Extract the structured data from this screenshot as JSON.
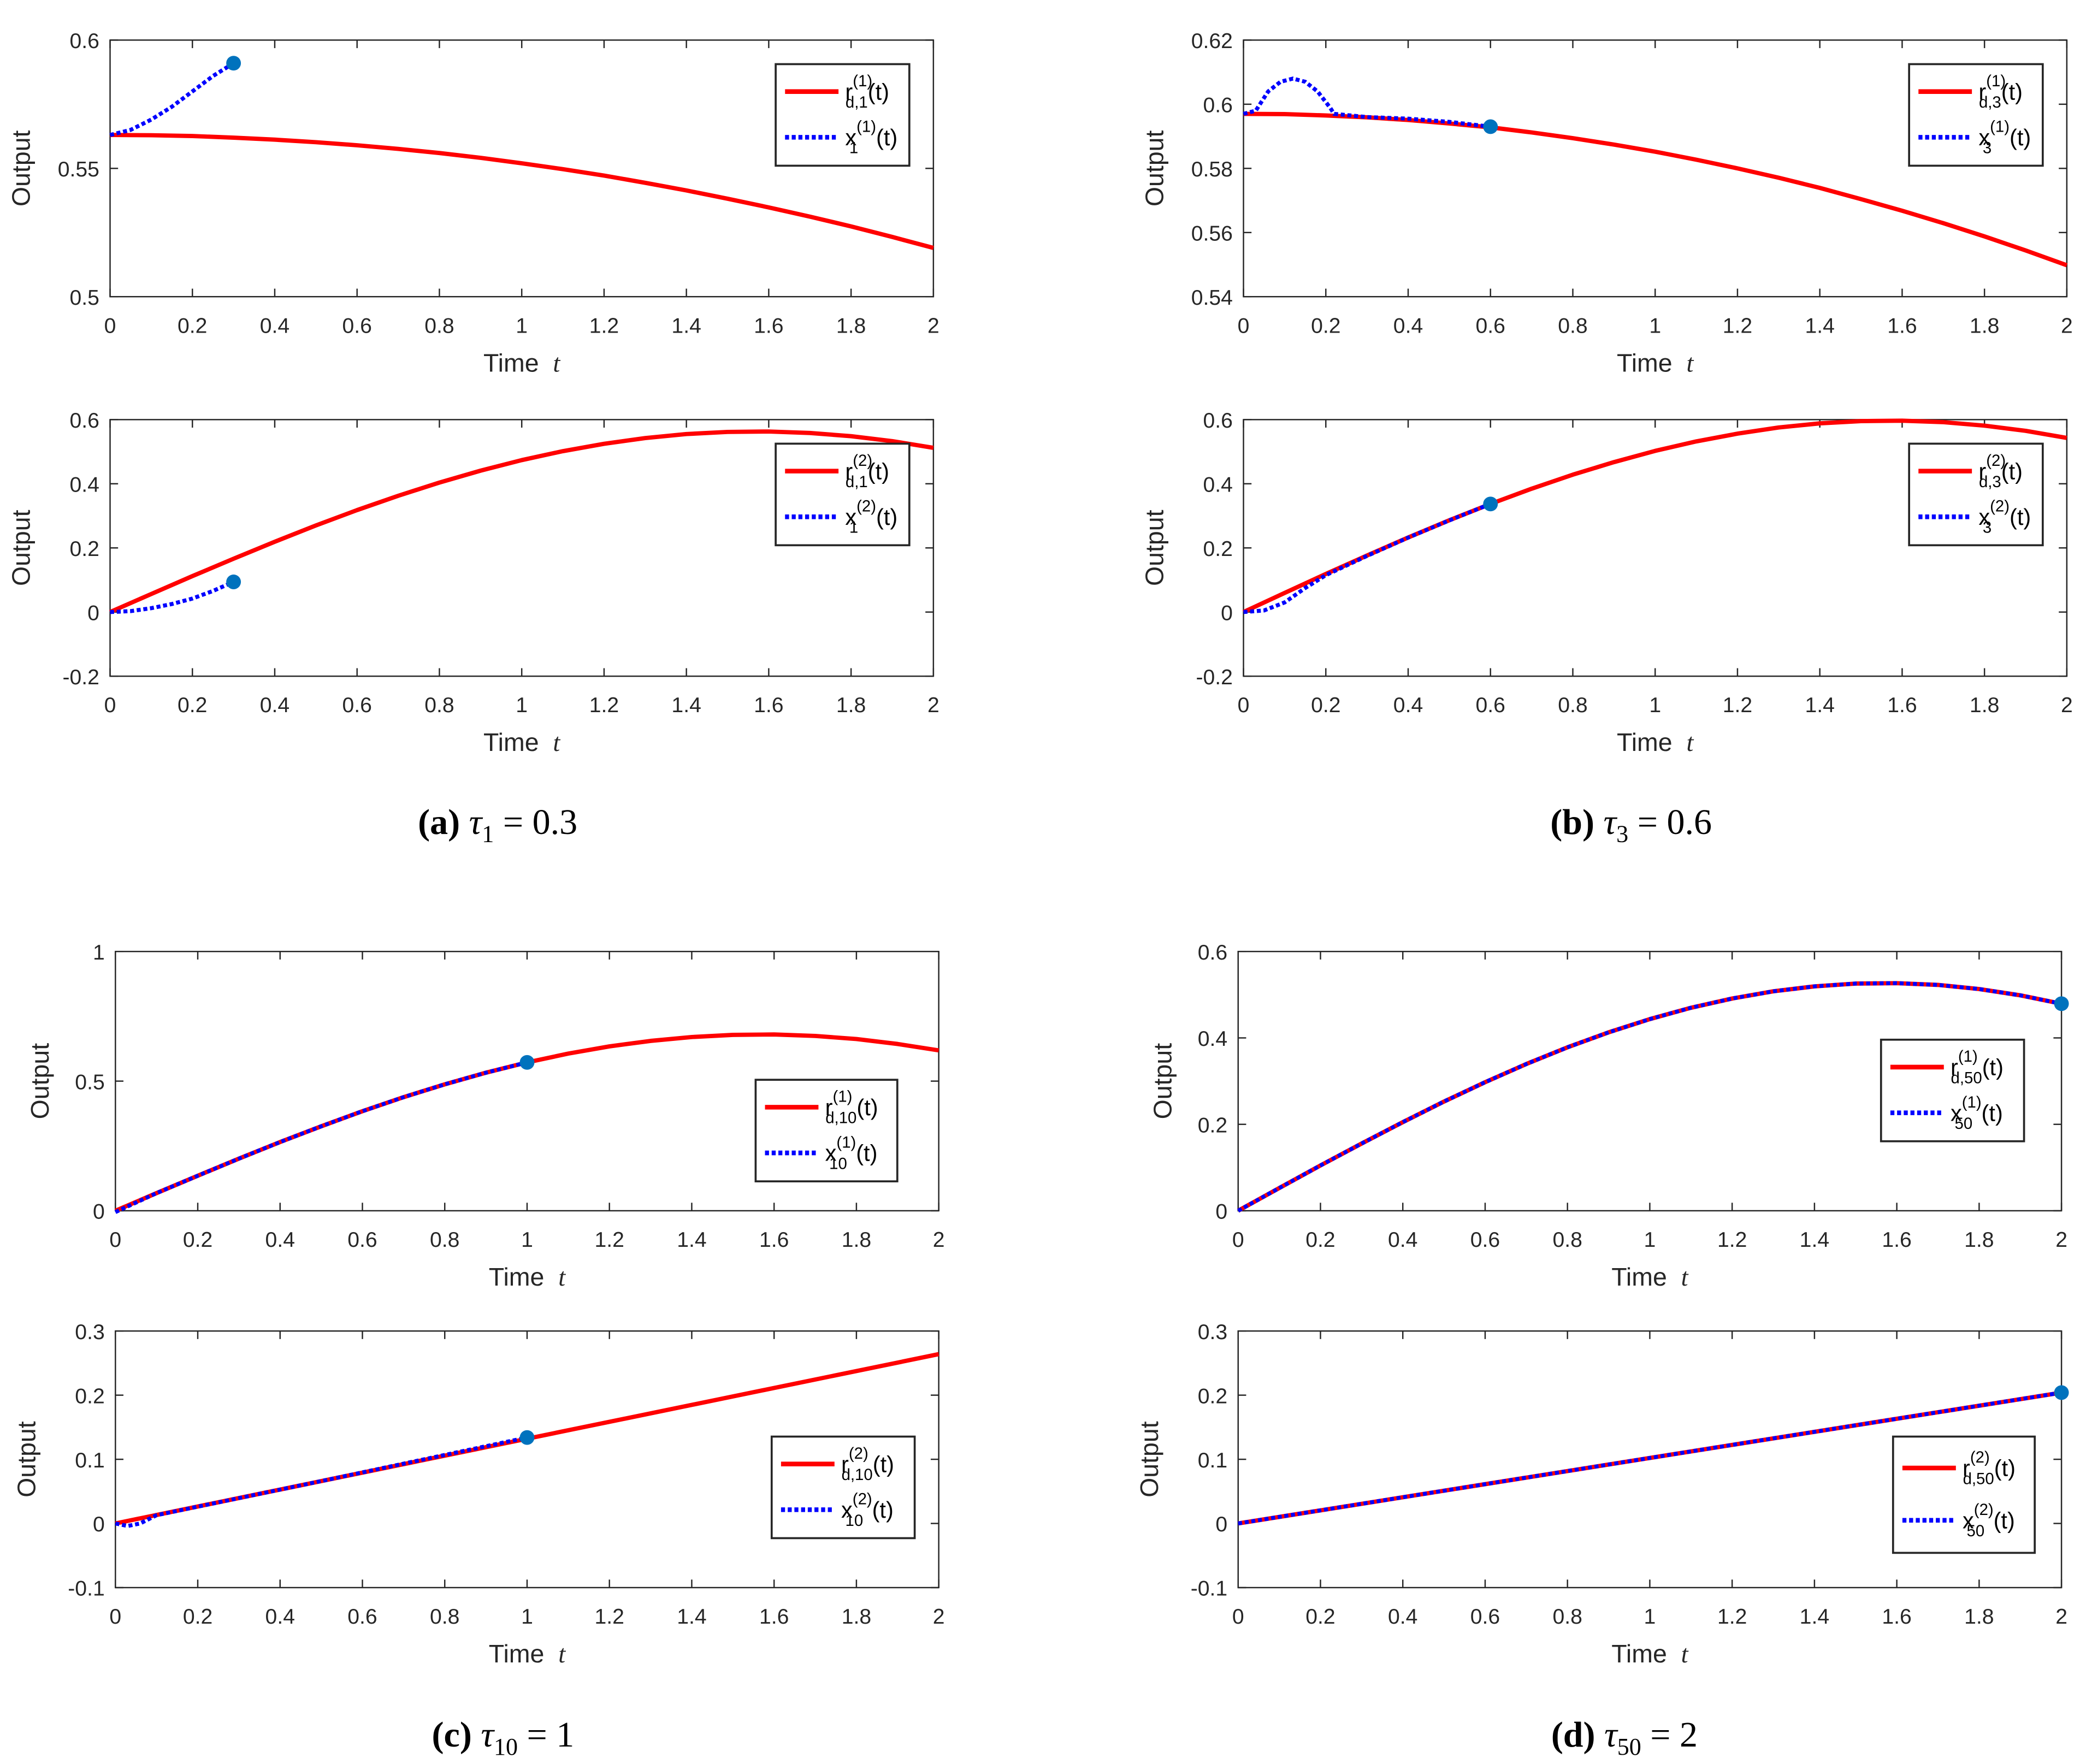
{
  "colors": {
    "reference": "#ff0000",
    "state": "#0000ff",
    "marker": "#0072bd",
    "axis": "#262626"
  },
  "chart_data": [
    {
      "type": "line",
      "panel": "a",
      "position": "top",
      "xlabel": "Time",
      "xlabel_var": "t",
      "ylabel": "Output",
      "xlim": [
        0,
        2
      ],
      "ylim": [
        0.5,
        0.6
      ],
      "xticks": [
        0,
        0.2,
        0.4,
        0.6,
        0.8,
        1,
        1.2,
        1.4,
        1.6,
        1.8,
        2
      ],
      "xtick_labels": [
        "0",
        "0.2",
        "0.4",
        "0.6",
        "0.8",
        "1",
        "1.2",
        "1.4",
        "1.6",
        "1.8",
        "2"
      ],
      "yticks": [
        0.5,
        0.55,
        0.6
      ],
      "ytick_labels": [
        "0.5",
        "0.55",
        "0.6"
      ],
      "legend": "top-right",
      "series": [
        {
          "name": "r_d,1^(1)(t)",
          "legend": {
            "base": "r",
            "sup": "(1)",
            "sub": "d,1",
            "arg": "(t)"
          },
          "style": "solid",
          "t": [
            0,
            0.1,
            0.2,
            0.3,
            0.4,
            0.5,
            0.6,
            0.7,
            0.8,
            0.9,
            1,
            1.1,
            1.2,
            1.3,
            1.4,
            1.5,
            1.6,
            1.7,
            1.8,
            1.9,
            2
          ],
          "y": [
            0.563,
            0.5629,
            0.5626,
            0.562,
            0.5612,
            0.5602,
            0.559,
            0.5576,
            0.556,
            0.5541,
            0.552,
            0.5497,
            0.5472,
            0.5444,
            0.5414,
            0.5382,
            0.5348,
            0.5312,
            0.5274,
            0.5233,
            0.519
          ]
        },
        {
          "name": "x_1^(1)(t)",
          "legend": {
            "base": "x",
            "sup": "(1)",
            "sub": "1",
            "arg": "(t)"
          },
          "style": "dotted",
          "end_marker": true,
          "t": [
            0,
            0.05,
            0.1,
            0.15,
            0.2,
            0.25,
            0.3
          ],
          "y": [
            0.563,
            0.565,
            0.569,
            0.574,
            0.58,
            0.586,
            0.591
          ]
        }
      ]
    },
    {
      "type": "line",
      "panel": "a",
      "position": "bottom",
      "xlabel": "Time",
      "xlabel_var": "t",
      "ylabel": "Output",
      "xlim": [
        0,
        2
      ],
      "ylim": [
        -0.2,
        0.6
      ],
      "xticks": [
        0,
        0.2,
        0.4,
        0.6,
        0.8,
        1,
        1.2,
        1.4,
        1.6,
        1.8,
        2
      ],
      "xtick_labels": [
        "0",
        "0.2",
        "0.4",
        "0.6",
        "0.8",
        "1",
        "1.2",
        "1.4",
        "1.6",
        "1.8",
        "2"
      ],
      "yticks": [
        -0.2,
        0,
        0.2,
        0.4,
        0.6
      ],
      "ytick_labels": [
        "-0.2",
        "0",
        "0.2",
        "0.4",
        "0.6"
      ],
      "legend": "top-right",
      "series": [
        {
          "name": "r_d,1^(2)(t)",
          "legend": {
            "base": "r",
            "sup": "(2)",
            "sub": "d,1",
            "arg": "(t)"
          },
          "style": "solid",
          "t": [
            0,
            0.1,
            0.2,
            0.3,
            0.4,
            0.5,
            0.6,
            0.7,
            0.8,
            0.9,
            1,
            1.1,
            1.2,
            1.3,
            1.4,
            1.5,
            1.6,
            1.7,
            1.8,
            1.9,
            2
          ],
          "y": [
            0,
            0.0562,
            0.1119,
            0.1664,
            0.2192,
            0.2699,
            0.3179,
            0.3627,
            0.4039,
            0.441,
            0.4738,
            0.5017,
            0.5247,
            0.5425,
            0.5548,
            0.5616,
            0.5628,
            0.5583,
            0.5482,
            0.5328,
            0.5119
          ]
        },
        {
          "name": "x_1^(2)(t)",
          "legend": {
            "base": "x",
            "sup": "(2)",
            "sub": "1",
            "arg": "(t)"
          },
          "style": "dotted",
          "end_marker": true,
          "t": [
            0,
            0.05,
            0.1,
            0.15,
            0.2,
            0.25,
            0.3
          ],
          "y": [
            0,
            0.003,
            0.012,
            0.025,
            0.042,
            0.066,
            0.094
          ]
        }
      ]
    },
    {
      "type": "line",
      "panel": "b",
      "position": "top",
      "xlabel": "Time",
      "xlabel_var": "t",
      "ylabel": "Output",
      "xlim": [
        0,
        2
      ],
      "ylim": [
        0.54,
        0.62
      ],
      "xticks": [
        0,
        0.2,
        0.4,
        0.6,
        0.8,
        1,
        1.2,
        1.4,
        1.6,
        1.8,
        2
      ],
      "xtick_labels": [
        "0",
        "0.2",
        "0.4",
        "0.6",
        "0.8",
        "1",
        "1.2",
        "1.4",
        "1.6",
        "1.8",
        "2"
      ],
      "yticks": [
        0.54,
        0.56,
        0.58,
        0.6,
        0.62
      ],
      "ytick_labels": [
        "0.54",
        "0.56",
        "0.58",
        "0.6",
        "0.62"
      ],
      "legend": "top-right",
      "series": [
        {
          "name": "r_d,3^(1)(t)",
          "legend": {
            "base": "r",
            "sup": "(1)",
            "sub": "d,3",
            "arg": "(t)"
          },
          "style": "solid",
          "t": [
            0,
            0.1,
            0.2,
            0.3,
            0.4,
            0.5,
            0.6,
            0.7,
            0.8,
            0.9,
            1,
            1.1,
            1.2,
            1.3,
            1.4,
            1.5,
            1.6,
            1.7,
            1.8,
            1.9,
            2
          ],
          "y": [
            0.597,
            0.5969,
            0.5965,
            0.5959,
            0.5951,
            0.594,
            0.5928,
            0.5912,
            0.5894,
            0.5874,
            0.5852,
            0.5827,
            0.58,
            0.5771,
            0.5739,
            0.5704,
            0.5668,
            0.5629,
            0.5588,
            0.5544,
            0.5498
          ]
        },
        {
          "name": "x_3^(1)(t)",
          "legend": {
            "base": "x",
            "sup": "(1)",
            "sub": "3",
            "arg": "(t)"
          },
          "style": "dotted",
          "end_marker": true,
          "t": [
            0,
            0.03,
            0.06,
            0.09,
            0.12,
            0.15,
            0.18,
            0.21,
            0.22,
            0.3,
            0.4,
            0.5,
            0.6
          ],
          "y": [
            0.597,
            0.598,
            0.604,
            0.607,
            0.608,
            0.607,
            0.604,
            0.599,
            0.597,
            0.596,
            0.5955,
            0.5945,
            0.593
          ]
        }
      ]
    },
    {
      "type": "line",
      "panel": "b",
      "position": "bottom",
      "xlabel": "Time",
      "xlabel_var": "t",
      "ylabel": "Output",
      "xlim": [
        0,
        2
      ],
      "ylim": [
        -0.2,
        0.6
      ],
      "xticks": [
        0,
        0.2,
        0.4,
        0.6,
        0.8,
        1,
        1.2,
        1.4,
        1.6,
        1.8,
        2
      ],
      "xtick_labels": [
        "0",
        "0.2",
        "0.4",
        "0.6",
        "0.8",
        "1",
        "1.2",
        "1.4",
        "1.6",
        "1.8",
        "2"
      ],
      "yticks": [
        -0.2,
        0,
        0.2,
        0.4,
        0.6
      ],
      "ytick_labels": [
        "-0.2",
        "0",
        "0.2",
        "0.4",
        "0.6"
      ],
      "legend": "top-right",
      "series": [
        {
          "name": "r_d,3^(2)(t)",
          "legend": {
            "base": "r",
            "sup": "(2)",
            "sub": "d,3",
            "arg": "(t)"
          },
          "style": "solid",
          "t": [
            0,
            0.1,
            0.2,
            0.3,
            0.4,
            0.5,
            0.6,
            0.7,
            0.8,
            0.9,
            1,
            1.1,
            1.2,
            1.3,
            1.4,
            1.5,
            1.6,
            1.7,
            1.8,
            1.9,
            2
          ],
          "y": [
            0,
            0.0596,
            0.1186,
            0.1764,
            0.2325,
            0.2862,
            0.3371,
            0.3846,
            0.4283,
            0.4676,
            0.5024,
            0.532,
            0.5564,
            0.5753,
            0.5883,
            0.5955,
            0.5968,
            0.592,
            0.5814,
            0.5649,
            0.5429
          ]
        },
        {
          "name": "x_3^(2)(t)",
          "legend": {
            "base": "x",
            "sup": "(2)",
            "sub": "3",
            "arg": "(t)"
          },
          "style": "dotted",
          "end_marker": true,
          "t": [
            0,
            0.05,
            0.1,
            0.15,
            0.2,
            0.3,
            0.4,
            0.5,
            0.6
          ],
          "y": [
            0,
            0.005,
            0.03,
            0.075,
            0.115,
            0.175,
            0.232,
            0.286,
            0.337
          ]
        }
      ]
    },
    {
      "type": "line",
      "panel": "c",
      "position": "top",
      "xlabel": "Time",
      "xlabel_var": "t",
      "ylabel": "Output",
      "xlim": [
        0,
        2
      ],
      "ylim": [
        0,
        1
      ],
      "xticks": [
        0,
        0.2,
        0.4,
        0.6,
        0.8,
        1,
        1.2,
        1.4,
        1.6,
        1.8,
        2
      ],
      "xtick_labels": [
        "0",
        "0.2",
        "0.4",
        "0.6",
        "0.8",
        "1",
        "1.2",
        "1.4",
        "1.6",
        "1.8",
        "2"
      ],
      "yticks": [
        0,
        0.5,
        1
      ],
      "ytick_labels": [
        "0",
        "0.5",
        "1"
      ],
      "legend": "right",
      "series": [
        {
          "name": "r_d,10^(1)(t)",
          "legend": {
            "base": "r",
            "sup": "(1)",
            "sub": "d,10",
            "arg": "(t)"
          },
          "style": "solid",
          "t": [
            0,
            0.1,
            0.2,
            0.3,
            0.4,
            0.5,
            0.6,
            0.7,
            0.8,
            0.9,
            1,
            1.1,
            1.2,
            1.3,
            1.4,
            1.5,
            1.6,
            1.7,
            1.8,
            1.9,
            2
          ],
          "y": [
            0,
            0.0679,
            0.1351,
            0.2009,
            0.2648,
            0.326,
            0.3839,
            0.4381,
            0.4878,
            0.5326,
            0.5722,
            0.606,
            0.6338,
            0.6552,
            0.6701,
            0.6783,
            0.6797,
            0.6744,
            0.6622,
            0.6435,
            0.6183
          ]
        },
        {
          "name": "x_10^(1)(t)",
          "legend": {
            "base": "x",
            "sup": "(1)",
            "sub": "10",
            "arg": "(t)"
          },
          "style": "dotted",
          "end_marker": true,
          "t": [
            0,
            0.1,
            0.2,
            0.3,
            0.4,
            0.5,
            0.6,
            0.7,
            0.8,
            0.9,
            1
          ],
          "y": [
            -0.005,
            0.0679,
            0.1351,
            0.2009,
            0.2648,
            0.326,
            0.3839,
            0.4381,
            0.4878,
            0.5326,
            0.5722
          ]
        }
      ]
    },
    {
      "type": "line",
      "panel": "c",
      "position": "bottom",
      "xlabel": "Time",
      "xlabel_var": "t",
      "ylabel": "Output",
      "xlim": [
        0,
        2
      ],
      "ylim": [
        -0.1,
        0.3
      ],
      "xticks": [
        0,
        0.2,
        0.4,
        0.6,
        0.8,
        1,
        1.2,
        1.4,
        1.6,
        1.8,
        2
      ],
      "xtick_labels": [
        "0",
        "0.2",
        "0.4",
        "0.6",
        "0.8",
        "1",
        "1.2",
        "1.4",
        "1.6",
        "1.8",
        "2"
      ],
      "yticks": [
        -0.1,
        0,
        0.1,
        0.2,
        0.3
      ],
      "ytick_labels": [
        "-0.1",
        "0",
        "0.1",
        "0.2",
        "0.3"
      ],
      "legend": "right",
      "series": [
        {
          "name": "r_d,10^(2)(t)",
          "legend": {
            "base": "r",
            "sup": "(2)",
            "sub": "d,10",
            "arg": "(t)"
          },
          "style": "solid",
          "t": [
            0,
            1,
            2
          ],
          "y": [
            0,
            0.132,
            0.264
          ]
        },
        {
          "name": "x_10^(2)(t)",
          "legend": {
            "base": "x",
            "sup": "(2)",
            "sub": "10",
            "arg": "(t)"
          },
          "style": "dotted",
          "end_marker": true,
          "t": [
            0,
            0.03,
            0.06,
            0.1,
            0.5,
            1
          ],
          "y": [
            0,
            -0.004,
            0.0,
            0.013,
            0.066,
            0.134
          ]
        }
      ]
    },
    {
      "type": "line",
      "panel": "d",
      "position": "top",
      "xlabel": "Time",
      "xlabel_var": "t",
      "ylabel": "Output",
      "xlim": [
        0,
        2
      ],
      "ylim": [
        0,
        0.6
      ],
      "xticks": [
        0,
        0.2,
        0.4,
        0.6,
        0.8,
        1,
        1.2,
        1.4,
        1.6,
        1.8,
        2
      ],
      "xtick_labels": [
        "0",
        "0.2",
        "0.4",
        "0.6",
        "0.8",
        "1",
        "1.2",
        "1.4",
        "1.6",
        "1.8",
        "2"
      ],
      "yticks": [
        0,
        0.2,
        0.4,
        0.6
      ],
      "ytick_labels": [
        "0",
        "0.2",
        "0.4",
        "0.6"
      ],
      "legend": "right",
      "series": [
        {
          "name": "r_d,50^(1)(t)",
          "legend": {
            "base": "r",
            "sup": "(1)",
            "sub": "d,50",
            "arg": "(t)"
          },
          "style": "solid",
          "t": [
            0,
            0.1,
            0.2,
            0.3,
            0.4,
            0.5,
            0.6,
            0.7,
            0.8,
            0.9,
            1,
            1.1,
            1.2,
            1.3,
            1.4,
            1.5,
            1.6,
            1.7,
            1.8,
            1.9,
            2
          ],
          "y": [
            0,
            0.0526,
            0.1047,
            0.1557,
            0.2052,
            0.2526,
            0.2975,
            0.3395,
            0.3781,
            0.4128,
            0.4435,
            0.4697,
            0.4912,
            0.5078,
            0.5193,
            0.5257,
            0.5268,
            0.5226,
            0.5132,
            0.4987,
            0.4792
          ]
        },
        {
          "name": "x_50^(1)(t)",
          "legend": {
            "base": "x",
            "sup": "(1)",
            "sub": "50",
            "arg": "(t)"
          },
          "style": "dotted",
          "end_marker": true,
          "t": [
            0,
            0.1,
            0.2,
            0.3,
            0.4,
            0.5,
            0.6,
            0.7,
            0.8,
            0.9,
            1,
            1.1,
            1.2,
            1.3,
            1.4,
            1.5,
            1.6,
            1.7,
            1.8,
            1.9,
            2
          ],
          "y": [
            0,
            0.0526,
            0.1047,
            0.1557,
            0.2052,
            0.2526,
            0.2975,
            0.3395,
            0.3781,
            0.4128,
            0.4435,
            0.4697,
            0.4912,
            0.5078,
            0.5193,
            0.5257,
            0.5268,
            0.5226,
            0.5132,
            0.4987,
            0.4792
          ]
        }
      ]
    },
    {
      "type": "line",
      "panel": "d",
      "position": "bottom",
      "xlabel": "Time",
      "xlabel_var": "t",
      "ylabel": "Output",
      "xlim": [
        0,
        2
      ],
      "ylim": [
        -0.1,
        0.3
      ],
      "xticks": [
        0,
        0.2,
        0.4,
        0.6,
        0.8,
        1,
        1.2,
        1.4,
        1.6,
        1.8,
        2
      ],
      "xtick_labels": [
        "0",
        "0.2",
        "0.4",
        "0.6",
        "0.8",
        "1",
        "1.2",
        "1.4",
        "1.6",
        "1.8",
        "2"
      ],
      "yticks": [
        -0.1,
        0,
        0.1,
        0.2,
        0.3
      ],
      "ytick_labels": [
        "-0.1",
        "0",
        "0.1",
        "0.2",
        "0.3"
      ],
      "legend": "right",
      "series": [
        {
          "name": "r_d,50^(2)(t)",
          "legend": {
            "base": "r",
            "sup": "(2)",
            "sub": "d,50",
            "arg": "(t)"
          },
          "style": "solid",
          "t": [
            0,
            1,
            2
          ],
          "y": [
            0,
            0.102,
            0.204
          ]
        },
        {
          "name": "x_50^(2)(t)",
          "legend": {
            "base": "x",
            "sup": "(2)",
            "sub": "50",
            "arg": "(t)"
          },
          "style": "dotted",
          "end_marker": true,
          "t": [
            0,
            1,
            2
          ],
          "y": [
            0,
            0.102,
            0.204
          ]
        }
      ]
    }
  ],
  "captions": [
    {
      "letter": "(a)",
      "tau": "τ",
      "sub": "1",
      "rest": " = 0.3"
    },
    {
      "letter": "(b)",
      "tau": "τ",
      "sub": "3",
      "rest": " = 0.6"
    },
    {
      "letter": "(c)",
      "tau": "τ",
      "sub": "10",
      "rest": " = 1"
    },
    {
      "letter": "(d)",
      "tau": "τ",
      "sub": "50",
      "rest": " = 2"
    }
  ]
}
